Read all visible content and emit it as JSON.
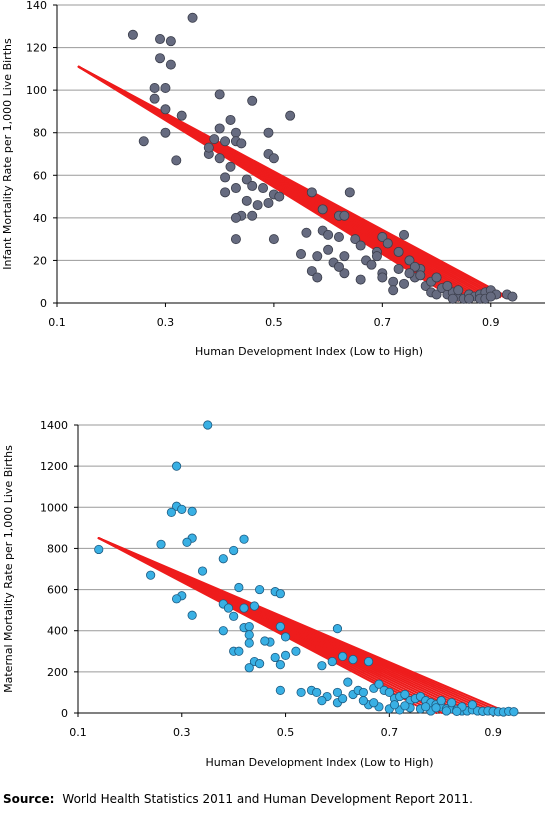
{
  "chart_data": [
    {
      "type": "scatter",
      "ylabel": "Infant Mortality Rate per 1,000 Live Births",
      "xlabel": "Human Development Index (Low to High)",
      "xlim": [
        0.1,
        1.0
      ],
      "ylim": [
        0,
        140
      ],
      "xticks": [
        "0.1",
        "0.3",
        "0.5",
        "0.7",
        "0.9"
      ],
      "xtick_values": [
        0.1,
        0.3,
        0.5,
        0.7,
        0.9
      ],
      "yticks": [
        "0",
        "20",
        "40",
        "60",
        "80",
        "100",
        "120",
        "140"
      ],
      "ytick_values": [
        0,
        20,
        40,
        60,
        80,
        100,
        120,
        140
      ],
      "grid": "horizontal",
      "colors": {
        "points": "#666b80",
        "point_stroke": "#3a3d4a",
        "trend": "#ee1c1c"
      },
      "trend": {
        "x1": 0.14,
        "y1": 111,
        "x2": 0.93,
        "y2": 3,
        "x2_low": 0.84,
        "y2_low": 1
      },
      "points": [
        [
          0.24,
          126
        ],
        [
          0.35,
          134
        ],
        [
          0.29,
          124
        ],
        [
          0.31,
          123
        ],
        [
          0.29,
          115
        ],
        [
          0.31,
          112
        ],
        [
          0.28,
          101
        ],
        [
          0.3,
          101
        ],
        [
          0.28,
          96
        ],
        [
          0.3,
          91
        ],
        [
          0.33,
          88
        ],
        [
          0.3,
          80
        ],
        [
          0.26,
          76
        ],
        [
          0.32,
          67
        ],
        [
          0.4,
          98
        ],
        [
          0.46,
          95
        ],
        [
          0.53,
          88
        ],
        [
          0.49,
          80
        ],
        [
          0.42,
          86
        ],
        [
          0.4,
          82
        ],
        [
          0.43,
          80
        ],
        [
          0.39,
          77
        ],
        [
          0.41,
          76
        ],
        [
          0.43,
          76
        ],
        [
          0.44,
          75
        ],
        [
          0.38,
          70
        ],
        [
          0.4,
          68
        ],
        [
          0.49,
          70
        ],
        [
          0.5,
          68
        ],
        [
          0.38,
          73
        ],
        [
          0.42,
          64
        ],
        [
          0.41,
          59
        ],
        [
          0.45,
          58
        ],
        [
          0.46,
          55
        ],
        [
          0.43,
          54
        ],
        [
          0.48,
          54
        ],
        [
          0.41,
          52
        ],
        [
          0.45,
          48
        ],
        [
          0.5,
          51
        ],
        [
          0.49,
          47
        ],
        [
          0.51,
          50
        ],
        [
          0.47,
          46
        ],
        [
          0.44,
          41
        ],
        [
          0.43,
          40
        ],
        [
          0.46,
          41
        ],
        [
          0.5,
          30
        ],
        [
          0.43,
          30
        ],
        [
          0.57,
          52
        ],
        [
          0.64,
          52
        ],
        [
          0.59,
          44
        ],
        [
          0.62,
          41
        ],
        [
          0.63,
          41
        ],
        [
          0.59,
          34
        ],
        [
          0.6,
          32
        ],
        [
          0.56,
          33
        ],
        [
          0.62,
          31
        ],
        [
          0.55,
          23
        ],
        [
          0.58,
          22
        ],
        [
          0.57,
          15
        ],
        [
          0.58,
          12
        ],
        [
          0.61,
          19
        ],
        [
          0.63,
          22
        ],
        [
          0.6,
          25
        ],
        [
          0.65,
          30
        ],
        [
          0.66,
          27
        ],
        [
          0.63,
          14
        ],
        [
          0.66,
          11
        ],
        [
          0.62,
          17
        ],
        [
          0.67,
          20
        ],
        [
          0.68,
          18
        ],
        [
          0.7,
          31
        ],
        [
          0.71,
          28
        ],
        [
          0.69,
          24
        ],
        [
          0.69,
          22
        ],
        [
          0.7,
          14
        ],
        [
          0.72,
          10
        ],
        [
          0.74,
          32
        ],
        [
          0.73,
          24
        ],
        [
          0.75,
          20
        ],
        [
          0.7,
          12
        ],
        [
          0.72,
          6
        ],
        [
          0.74,
          9
        ],
        [
          0.76,
          12
        ],
        [
          0.77,
          16
        ],
        [
          0.78,
          8
        ],
        [
          0.79,
          10
        ],
        [
          0.79,
          5
        ],
        [
          0.8,
          4
        ],
        [
          0.81,
          7
        ],
        [
          0.82,
          4
        ],
        [
          0.83,
          5
        ],
        [
          0.84,
          3
        ],
        [
          0.83,
          2
        ],
        [
          0.85,
          2
        ],
        [
          0.86,
          4
        ],
        [
          0.87,
          3
        ],
        [
          0.88,
          4
        ],
        [
          0.89,
          5
        ],
        [
          0.9,
          6
        ],
        [
          0.91,
          4
        ],
        [
          0.88,
          2
        ],
        [
          0.86,
          2
        ],
        [
          0.89,
          2
        ],
        [
          0.9,
          3
        ],
        [
          0.93,
          4
        ],
        [
          0.94,
          3
        ],
        [
          0.76,
          17
        ],
        [
          0.73,
          16
        ],
        [
          0.75,
          14
        ],
        [
          0.77,
          13
        ],
        [
          0.8,
          12
        ],
        [
          0.82,
          8
        ],
        [
          0.84,
          6
        ]
      ]
    },
    {
      "type": "scatter",
      "ylabel": "Maternal Mortality Rate per 1,000 Live Births",
      "xlabel": "Human Development Index (Low to High)",
      "xlim": [
        0.1,
        1.0
      ],
      "ylim": [
        0,
        1400
      ],
      "xticks": [
        "0.1",
        "0.3",
        "0.5",
        "0.7",
        "0.9"
      ],
      "xtick_values": [
        0.1,
        0.3,
        0.5,
        0.7,
        0.9
      ],
      "yticks": [
        "0",
        "200",
        "400",
        "600",
        "800",
        "1000",
        "1200",
        "1400"
      ],
      "ytick_values": [
        0,
        200,
        400,
        600,
        800,
        1000,
        1200,
        1400
      ],
      "grid": "horizontal",
      "colors": {
        "points": "#39b0e4",
        "point_stroke": "#1d5b82",
        "trend": "#ee1c1c"
      },
      "trend": {
        "x1": 0.14,
        "y1": 850,
        "x2": 0.93,
        "y2": 0,
        "x2_low": 0.78,
        "y2_low": 0
      },
      "points": [
        [
          0.35,
          1400
        ],
        [
          0.29,
          1200
        ],
        [
          0.29,
          1005
        ],
        [
          0.3,
          990
        ],
        [
          0.28,
          975
        ],
        [
          0.32,
          980
        ],
        [
          0.32,
          850
        ],
        [
          0.31,
          830
        ],
        [
          0.14,
          795
        ],
        [
          0.26,
          820
        ],
        [
          0.4,
          790
        ],
        [
          0.42,
          845
        ],
        [
          0.38,
          750
        ],
        [
          0.24,
          670
        ],
        [
          0.34,
          690
        ],
        [
          0.3,
          570
        ],
        [
          0.29,
          555
        ],
        [
          0.32,
          475
        ],
        [
          0.41,
          610
        ],
        [
          0.45,
          600
        ],
        [
          0.48,
          590
        ],
        [
          0.49,
          580
        ],
        [
          0.38,
          530
        ],
        [
          0.39,
          510
        ],
        [
          0.42,
          510
        ],
        [
          0.44,
          520
        ],
        [
          0.4,
          470
        ],
        [
          0.38,
          400
        ],
        [
          0.42,
          415
        ],
        [
          0.43,
          420
        ],
        [
          0.43,
          380
        ],
        [
          0.49,
          420
        ],
        [
          0.5,
          370
        ],
        [
          0.43,
          340
        ],
        [
          0.4,
          300
        ],
        [
          0.47,
          345
        ],
        [
          0.46,
          350
        ],
        [
          0.52,
          300
        ],
        [
          0.5,
          280
        ],
        [
          0.48,
          270
        ],
        [
          0.41,
          300
        ],
        [
          0.44,
          250
        ],
        [
          0.45,
          240
        ],
        [
          0.49,
          235
        ],
        [
          0.43,
          220
        ],
        [
          0.6,
          410
        ],
        [
          0.61,
          275
        ],
        [
          0.63,
          260
        ],
        [
          0.59,
          250
        ],
        [
          0.57,
          230
        ],
        [
          0.66,
          250
        ],
        [
          0.49,
          110
        ],
        [
          0.53,
          100
        ],
        [
          0.55,
          110
        ],
        [
          0.56,
          100
        ],
        [
          0.58,
          80
        ],
        [
          0.57,
          60
        ],
        [
          0.6,
          50
        ],
        [
          0.61,
          70
        ],
        [
          0.6,
          100
        ],
        [
          0.63,
          90
        ],
        [
          0.62,
          150
        ],
        [
          0.64,
          110
        ],
        [
          0.65,
          100
        ],
        [
          0.67,
          120
        ],
        [
          0.68,
          140
        ],
        [
          0.69,
          110
        ],
        [
          0.7,
          100
        ],
        [
          0.71,
          70
        ],
        [
          0.72,
          80
        ],
        [
          0.73,
          90
        ],
        [
          0.74,
          60
        ],
        [
          0.75,
          70
        ],
        [
          0.76,
          80
        ],
        [
          0.77,
          60
        ],
        [
          0.78,
          50
        ],
        [
          0.79,
          40
        ],
        [
          0.8,
          30
        ],
        [
          0.81,
          20
        ],
        [
          0.82,
          20
        ],
        [
          0.83,
          15
        ],
        [
          0.84,
          10
        ],
        [
          0.85,
          10
        ],
        [
          0.86,
          15
        ],
        [
          0.87,
          10
        ],
        [
          0.88,
          8
        ],
        [
          0.89,
          10
        ],
        [
          0.9,
          8
        ],
        [
          0.91,
          6
        ],
        [
          0.92,
          5
        ],
        [
          0.93,
          8
        ],
        [
          0.94,
          6
        ],
        [
          0.66,
          40
        ],
        [
          0.68,
          30
        ],
        [
          0.7,
          20
        ],
        [
          0.72,
          15
        ],
        [
          0.74,
          25
        ],
        [
          0.76,
          20
        ],
        [
          0.78,
          10
        ],
        [
          0.65,
          60
        ],
        [
          0.67,
          50
        ],
        [
          0.71,
          40
        ],
        [
          0.73,
          35
        ],
        [
          0.8,
          60
        ],
        [
          0.82,
          50
        ],
        [
          0.84,
          30
        ],
        [
          0.86,
          40
        ],
        [
          0.77,
          30
        ],
        [
          0.79,
          25
        ],
        [
          0.81,
          10
        ],
        [
          0.83,
          8
        ]
      ]
    }
  ],
  "source": {
    "label": "Source:",
    "text": "World Health Statistics 2011 and Human Development Report 2011."
  }
}
